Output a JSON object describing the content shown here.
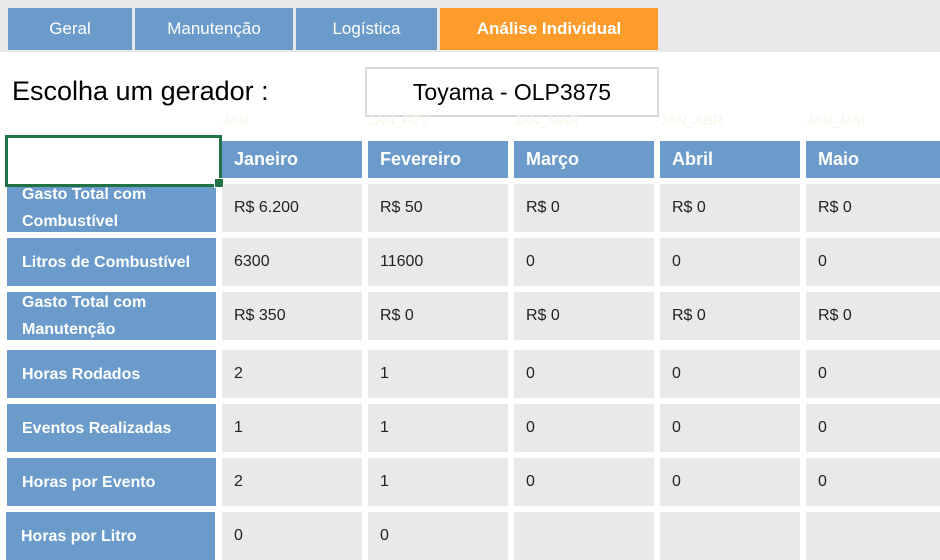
{
  "tabs": [
    {
      "label": "Geral"
    },
    {
      "label": "Manutenção"
    },
    {
      "label": "Logística"
    },
    {
      "label": "Análise Individual",
      "active": true
    }
  ],
  "title": "Escolha um gerador :",
  "generator": "Toyama - OLP3875",
  "ghost_headers": [
    "JAN",
    "JAN_FEV",
    "JAN_MAR",
    "JAN_ABR",
    "JAN_MAI"
  ],
  "columns": [
    "Janeiro",
    "Fevereiro",
    "Março",
    "Abril",
    "Maio"
  ],
  "rows": [
    {
      "label": "Gasto Total com Combustível",
      "values": [
        "R$ 6.200",
        "R$ 50",
        "R$ 0",
        "R$ 0",
        "R$ 0"
      ]
    },
    {
      "label": "Litros de Combustível",
      "values": [
        "6300",
        "11600",
        "0",
        "0",
        "0"
      ]
    },
    {
      "label": "Gasto Total com Manutenção",
      "values": [
        "R$ 350",
        "R$ 0",
        "R$ 0",
        "R$ 0",
        "R$ 0"
      ]
    },
    {
      "label": "Horas Rodados",
      "values": [
        "2",
        "1",
        "0",
        "0",
        "0"
      ]
    },
    {
      "label": "Eventos Realizadas",
      "values": [
        "1",
        "1",
        "0",
        "0",
        "0"
      ]
    },
    {
      "label": "Horas por Evento",
      "values": [
        "2",
        "1",
        "0",
        "0",
        "0"
      ]
    },
    {
      "label": "Horas por Litro",
      "values": [
        "0",
        "0",
        "",
        "",
        ""
      ]
    }
  ],
  "colors": {
    "header_blue": "#6a9bcb",
    "active_tab": "#fd9b2b",
    "cell_gray": "#e9e9e9",
    "selection": "#217346"
  }
}
